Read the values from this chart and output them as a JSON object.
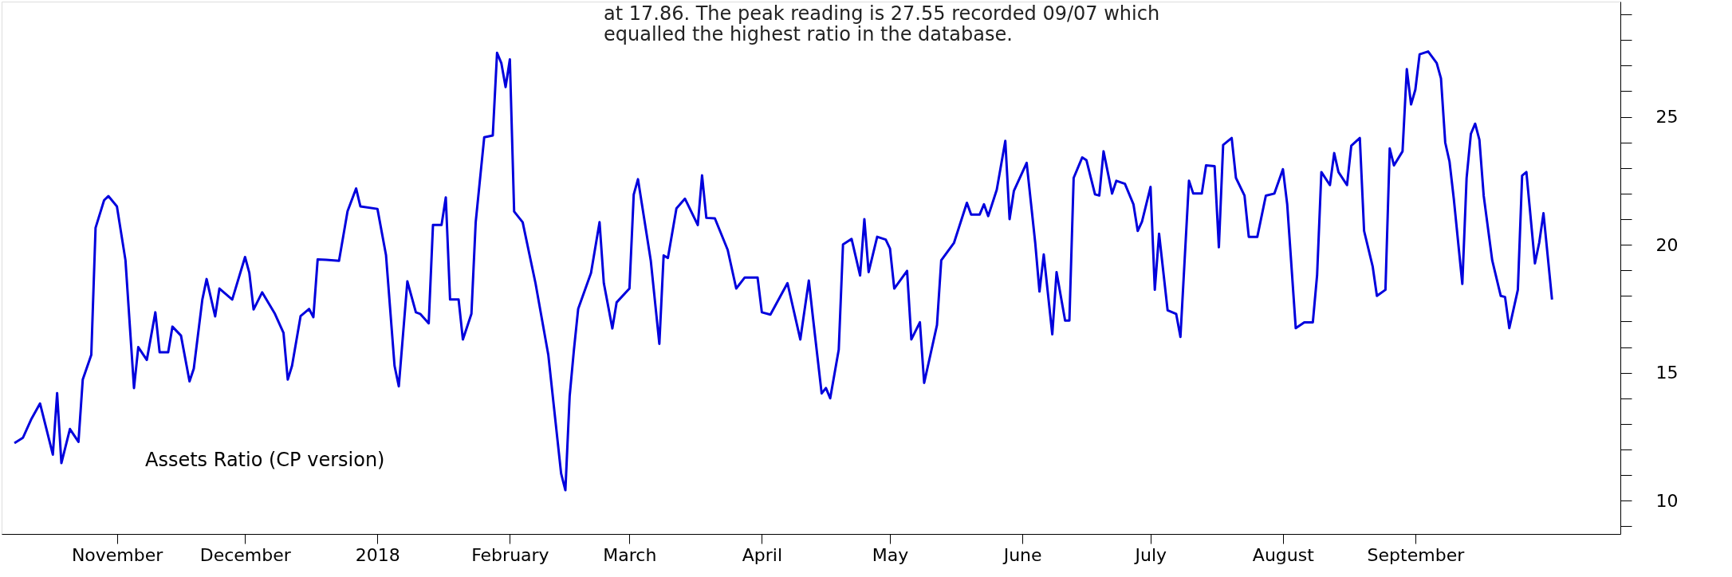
{
  "chart_data": {
    "type": "line",
    "title": "Assets Ratio (CP version)",
    "annotations": [
      "at 17.86. The peak reading is 27.55 recorded 09/07 which\nequalled the highest ratio in the database."
    ],
    "x": [
      "2017-10-08",
      "2017-10-10",
      "2017-10-12",
      "2017-10-14",
      "2017-10-17",
      "2017-10-18",
      "2017-10-19",
      "2017-10-21",
      "2017-10-23",
      "2017-10-24",
      "2017-10-26",
      "2017-10-27",
      "2017-10-29",
      "2017-10-30",
      "2017-11-01",
      "2017-11-03",
      "2017-11-05",
      "2017-11-06",
      "2017-11-08",
      "2017-11-10",
      "2017-11-11",
      "2017-11-13",
      "2017-11-14",
      "2017-11-16",
      "2017-11-18",
      "2017-11-19",
      "2017-11-21",
      "2017-11-22",
      "2017-11-24",
      "2017-11-25",
      "2017-11-28",
      "2017-12-01",
      "2017-12-02",
      "2017-12-03",
      "2017-12-05",
      "2017-12-08",
      "2017-12-10",
      "2017-12-11",
      "2017-12-12",
      "2017-12-14",
      "2017-12-16",
      "2017-12-17",
      "2017-12-18",
      "2017-12-20",
      "2017-12-23",
      "2017-12-25",
      "2017-12-27",
      "2017-12-28",
      "2018-01-01",
      "2018-01-03",
      "2018-01-05",
      "2018-01-06",
      "2018-01-08",
      "2018-01-10",
      "2018-01-11",
      "2018-01-13",
      "2018-01-14",
      "2018-01-16",
      "2018-01-17",
      "2018-01-18",
      "2018-01-20",
      "2018-01-21",
      "2018-01-23",
      "2018-01-24",
      "2018-01-26",
      "2018-01-28",
      "2018-01-29",
      "2018-01-30",
      "2018-01-31",
      "2018-02-01",
      "2018-02-02",
      "2018-02-04",
      "2018-02-07",
      "2018-02-10",
      "2018-02-13",
      "2018-02-14",
      "2018-02-15",
      "2018-02-16",
      "2018-02-17",
      "2018-02-20",
      "2018-02-22",
      "2018-02-23",
      "2018-02-25",
      "2018-02-26",
      "2018-03-01",
      "2018-03-02",
      "2018-03-03",
      "2018-03-06",
      "2018-03-08",
      "2018-03-09",
      "2018-03-10",
      "2018-03-12",
      "2018-03-14",
      "2018-03-17",
      "2018-03-18",
      "2018-03-19",
      "2018-03-21",
      "2018-03-24",
      "2018-03-26",
      "2018-03-28",
      "2018-03-31",
      "2018-04-01",
      "2018-04-03",
      "2018-04-07",
      "2018-04-10",
      "2018-04-12",
      "2018-04-13",
      "2018-04-15",
      "2018-04-16",
      "2018-04-17",
      "2018-04-19",
      "2018-04-20",
      "2018-04-22",
      "2018-04-24",
      "2018-04-25",
      "2018-04-26",
      "2018-04-28",
      "2018-04-30",
      "2018-05-01",
      "2018-05-02",
      "2018-05-05",
      "2018-05-06",
      "2018-05-08",
      "2018-05-09",
      "2018-05-12",
      "2018-05-13",
      "2018-05-16",
      "2018-05-19",
      "2018-05-20",
      "2018-05-22",
      "2018-05-23",
      "2018-05-24",
      "2018-05-26",
      "2018-05-28",
      "2018-05-29",
      "2018-05-30",
      "2018-06-02",
      "2018-06-04",
      "2018-06-05",
      "2018-06-06",
      "2018-06-08",
      "2018-06-09",
      "2018-06-11",
      "2018-06-12",
      "2018-06-13",
      "2018-06-15",
      "2018-06-16",
      "2018-06-18",
      "2018-06-19",
      "2018-06-20",
      "2018-06-22",
      "2018-06-23",
      "2018-06-25",
      "2018-06-27",
      "2018-06-28",
      "2018-06-29",
      "2018-07-01",
      "2018-07-02",
      "2018-07-03",
      "2018-07-05",
      "2018-07-07",
      "2018-07-08",
      "2018-07-10",
      "2018-07-11",
      "2018-07-13",
      "2018-07-14",
      "2018-07-16",
      "2018-07-17",
      "2018-07-18",
      "2018-07-20",
      "2018-07-21",
      "2018-07-23",
      "2018-07-24",
      "2018-07-26",
      "2018-07-28",
      "2018-07-30",
      "2018-08-01",
      "2018-08-02",
      "2018-08-04",
      "2018-08-06",
      "2018-08-08",
      "2018-08-09",
      "2018-08-10",
      "2018-08-12",
      "2018-08-13",
      "2018-08-14",
      "2018-08-16",
      "2018-08-17",
      "2018-08-19",
      "2018-08-20",
      "2018-08-22",
      "2018-08-23",
      "2018-08-25",
      "2018-08-26",
      "2018-08-27",
      "2018-08-29",
      "2018-08-30",
      "2018-08-31",
      "2018-09-01",
      "2018-09-02",
      "2018-09-04",
      "2018-09-06",
      "2018-09-07",
      "2018-09-08",
      "2018-09-09",
      "2018-09-10",
      "2018-09-12",
      "2018-09-13",
      "2018-09-14",
      "2018-09-15",
      "2018-09-16",
      "2018-09-17",
      "2018-09-19",
      "2018-09-21",
      "2018-09-22",
      "2018-09-23",
      "2018-09-25",
      "2018-09-26",
      "2018-09-27",
      "2018-09-29",
      "2018-09-30",
      "2018-10-01",
      "2018-10-03"
    ],
    "series": [
      {
        "color": "#0000dd",
        "line_style": "solid",
        "values": [
          12.25,
          12.46,
          13.2,
          13.8,
          11.8,
          14.2,
          11.47,
          12.8,
          12.3,
          14.73,
          15.7,
          20.66,
          21.74,
          21.9,
          21.5,
          19.4,
          14.4,
          16.0,
          15.5,
          17.36,
          15.8,
          15.8,
          16.8,
          16.45,
          14.66,
          15.16,
          17.86,
          18.66,
          17.2,
          18.29,
          17.86,
          19.52,
          18.9,
          17.47,
          18.14,
          17.3,
          16.56,
          14.73,
          15.27,
          17.21,
          17.49,
          17.17,
          19.43,
          19.41,
          19.37,
          21.31,
          22.2,
          21.5,
          21.4,
          19.6,
          15.27,
          14.47,
          18.57,
          17.36,
          17.3,
          16.93,
          20.77,
          20.77,
          21.85,
          17.86,
          17.86,
          16.3,
          17.3,
          20.88,
          24.2,
          24.27,
          27.5,
          27.1,
          26.16,
          27.24,
          21.3,
          20.88,
          18.5,
          15.7,
          11.06,
          10.41,
          14.08,
          15.9,
          17.5,
          18.9,
          20.88,
          18.5,
          16.73,
          17.75,
          18.29,
          21.96,
          22.56,
          19.37,
          16.13,
          19.58,
          19.48,
          21.42,
          21.8,
          20.77,
          22.71,
          21.05,
          21.03,
          19.8,
          18.29,
          18.72,
          18.72,
          17.36,
          17.27,
          18.5,
          16.3,
          18.6,
          17.1,
          14.19,
          14.4,
          14.0,
          15.9,
          20.01,
          20.23,
          18.8,
          21.0,
          18.93,
          20.31,
          20.2,
          19.85,
          18.29,
          18.98,
          16.3,
          16.97,
          14.6,
          16.86,
          19.39,
          20.08,
          21.64,
          21.18,
          21.18,
          21.58,
          21.12,
          22.15,
          24.06,
          21.0,
          22.1,
          23.2,
          20.08,
          18.17,
          19.62,
          16.5,
          18.93,
          17.04,
          17.04,
          22.61,
          23.41,
          23.3,
          21.97,
          21.92,
          23.65,
          22.0,
          22.5,
          22.38,
          21.58,
          20.54,
          20.9,
          22.26,
          18.24,
          20.43,
          17.44,
          17.3,
          16.4,
          22.5,
          22.0,
          22.0,
          23.1,
          23.07,
          19.9,
          23.9,
          24.17,
          22.61,
          21.92,
          20.31,
          20.31,
          21.92,
          22.0,
          22.95,
          21.58,
          16.74,
          16.97,
          16.97,
          18.82,
          22.84,
          22.33,
          23.58,
          22.84,
          22.33,
          23.87,
          24.17,
          20.54,
          19.16,
          18.0,
          18.24,
          23.76,
          23.1,
          23.65,
          26.86,
          25.48,
          26.06,
          27.44,
          27.55,
          27.1,
          26.5,
          23.99,
          23.25,
          21.8,
          18.47,
          22.61,
          24.33,
          24.73,
          24.1,
          21.92,
          19.39,
          18.0,
          17.96,
          16.74,
          18.24,
          22.7,
          22.84,
          19.27,
          20.08,
          21.23,
          17.86
        ]
      }
    ],
    "xlim": [
      "2017-10-05",
      "2018-10-19"
    ],
    "xticks": [
      {
        "value": "2017-11-01",
        "label": "November"
      },
      {
        "value": "2017-12-01",
        "label": "December"
      },
      {
        "value": "2018-01-01",
        "label": "2018"
      },
      {
        "value": "2018-02-01",
        "label": "February"
      },
      {
        "value": "2018-03-01",
        "label": "March"
      },
      {
        "value": "2018-04-01",
        "label": "April"
      },
      {
        "value": "2018-05-01",
        "label": "May"
      },
      {
        "value": "2018-06-01",
        "label": "June"
      },
      {
        "value": "2018-07-01",
        "label": "July"
      },
      {
        "value": "2018-08-01",
        "label": "August"
      },
      {
        "value": "2018-09-01",
        "label": "September"
      }
    ],
    "ylim": [
      8.7,
      29.5
    ],
    "yticks": [
      {
        "value": 9,
        "label": null
      },
      10,
      {
        "value": 11,
        "label": null
      },
      {
        "value": 12,
        "label": null
      },
      {
        "value": 13,
        "label": null
      },
      {
        "value": 14,
        "label": null
      },
      15,
      {
        "value": 16,
        "label": null
      },
      {
        "value": 17,
        "label": null
      },
      {
        "value": 18,
        "label": null
      },
      {
        "value": 19,
        "label": null
      },
      20,
      {
        "value": 21,
        "label": null
      },
      {
        "value": 22,
        "label": null
      },
      {
        "value": 23,
        "label": null
      },
      {
        "value": 24,
        "label": null
      },
      25,
      {
        "value": 26,
        "label": null
      },
      {
        "value": 27,
        "label": null
      },
      {
        "value": 28,
        "label": null
      },
      {
        "value": 29,
        "label": null
      }
    ]
  }
}
